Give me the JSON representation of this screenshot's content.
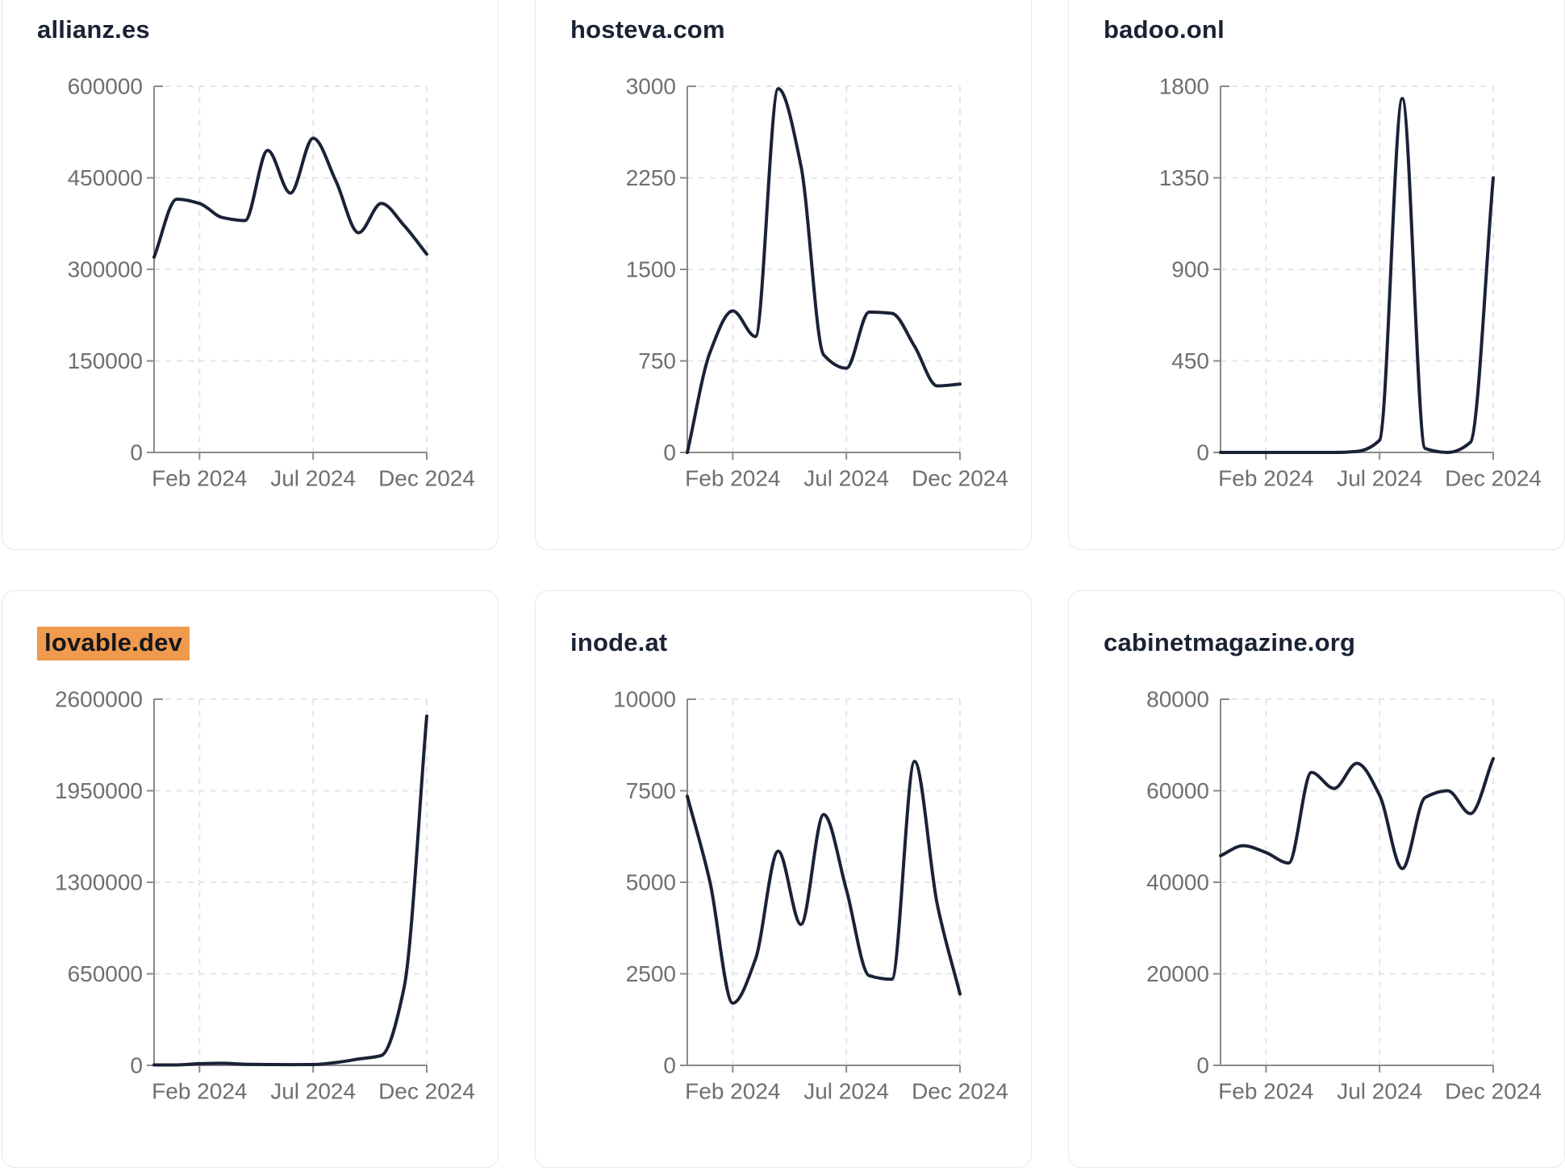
{
  "style": {
    "background": "#ffffff",
    "card_border_color": "#e7e7ef",
    "title_color": "#1a2333",
    "line_color": "#1a2236",
    "axis_color": "#8a8a8a",
    "tick_label_color": "#6f6f6f",
    "grid_color": "#e4e4ec",
    "highlight_color": "#f09a4e",
    "highlight_text_color": "#15171c"
  },
  "x_axis": {
    "tick_labels": [
      "Feb 2024",
      "Jul 2024",
      "Dec 2024"
    ],
    "tick_month_index": [
      2,
      7,
      12
    ]
  },
  "chart_data": [
    {
      "type": "line",
      "title": "allianz.es",
      "highlighted": false,
      "x": [
        "Dec 2023",
        "Jan 2024",
        "Feb 2024",
        "Mar 2024",
        "Apr 2024",
        "May 2024",
        "Jun 2024",
        "Jul 2024",
        "Aug 2024",
        "Sep 2024",
        "Oct 2024",
        "Nov 2024",
        "Dec 2024"
      ],
      "values": [
        320000,
        415000,
        408000,
        385000,
        380000,
        495000,
        425000,
        515000,
        445000,
        360000,
        408000,
        372000,
        325000
      ],
      "y_ticks": [
        0,
        150000,
        300000,
        450000,
        600000
      ],
      "ylim": [
        0,
        600000
      ],
      "xlabel": "",
      "ylabel": "",
      "grid": "dashed",
      "legend": "none"
    },
    {
      "type": "line",
      "title": "hosteva.com",
      "highlighted": false,
      "x": [
        "Dec 2023",
        "Jan 2024",
        "Feb 2024",
        "Mar 2024",
        "Apr 2024",
        "May 2024",
        "Jun 2024",
        "Jul 2024",
        "Aug 2024",
        "Sep 2024",
        "Oct 2024",
        "Nov 2024",
        "Dec 2024"
      ],
      "values": [
        0,
        820,
        1160,
        950,
        2980,
        2350,
        800,
        690,
        1150,
        1140,
        870,
        545,
        560
      ],
      "y_ticks": [
        0,
        750,
        1500,
        2250,
        3000
      ],
      "ylim": [
        0,
        3000
      ],
      "xlabel": "",
      "ylabel": "",
      "grid": "dashed",
      "legend": "none"
    },
    {
      "type": "line",
      "title": "badoo.onl",
      "highlighted": false,
      "x": [
        "Dec 2023",
        "Jan 2024",
        "Feb 2024",
        "Mar 2024",
        "Apr 2024",
        "May 2024",
        "Jun 2024",
        "Jul 2024",
        "Aug 2024",
        "Sep 2024",
        "Oct 2024",
        "Nov 2024",
        "Dec 2024"
      ],
      "values": [
        0,
        0,
        0,
        0,
        0,
        0,
        5,
        60,
        1740,
        20,
        0,
        50,
        1350
      ],
      "y_ticks": [
        0,
        450,
        900,
        1350,
        1800
      ],
      "ylim": [
        0,
        1800
      ],
      "xlabel": "",
      "ylabel": "",
      "grid": "dashed",
      "legend": "none"
    },
    {
      "type": "line",
      "title": "lovable.dev",
      "highlighted": true,
      "x": [
        "Dec 2023",
        "Jan 2024",
        "Feb 2024",
        "Mar 2024",
        "Apr 2024",
        "May 2024",
        "Jun 2024",
        "Jul 2024",
        "Aug 2024",
        "Sep 2024",
        "Oct 2024",
        "Nov 2024",
        "Dec 2024"
      ],
      "values": [
        3000,
        3000,
        12000,
        15000,
        8000,
        6000,
        5000,
        6000,
        20000,
        45000,
        70000,
        550000,
        2480000
      ],
      "y_ticks": [
        0,
        650000,
        1300000,
        1950000,
        2600000
      ],
      "ylim": [
        0,
        2600000
      ],
      "xlabel": "",
      "ylabel": "",
      "grid": "dashed",
      "legend": "none"
    },
    {
      "type": "line",
      "title": "inode.at",
      "highlighted": false,
      "x": [
        "Dec 2023",
        "Jan 2024",
        "Feb 2024",
        "Mar 2024",
        "Apr 2024",
        "May 2024",
        "Jun 2024",
        "Jul 2024",
        "Aug 2024",
        "Sep 2024",
        "Oct 2024",
        "Nov 2024",
        "Dec 2024"
      ],
      "values": [
        7350,
        5000,
        1700,
        2900,
        5850,
        3850,
        6850,
        4800,
        2450,
        2350,
        8300,
        4400,
        1950
      ],
      "y_ticks": [
        0,
        2500,
        5000,
        7500,
        10000
      ],
      "ylim": [
        0,
        10000
      ],
      "xlabel": "",
      "ylabel": "",
      "grid": "dashed",
      "legend": "none"
    },
    {
      "type": "line",
      "title": "cabinetmagazine.org",
      "highlighted": false,
      "x": [
        "Dec 2023",
        "Jan 2024",
        "Feb 2024",
        "Mar 2024",
        "Apr 2024",
        "May 2024",
        "Jun 2024",
        "Jul 2024",
        "Aug 2024",
        "Sep 2024",
        "Oct 2024",
        "Nov 2024",
        "Dec 2024"
      ],
      "values": [
        45800,
        48000,
        46500,
        44200,
        64000,
        60500,
        66000,
        59000,
        43000,
        58500,
        60000,
        55000,
        67000
      ],
      "y_ticks": [
        0,
        20000,
        40000,
        60000,
        80000
      ],
      "ylim": [
        0,
        80000
      ],
      "xlabel": "",
      "ylabel": "",
      "grid": "dashed",
      "legend": "none"
    }
  ]
}
